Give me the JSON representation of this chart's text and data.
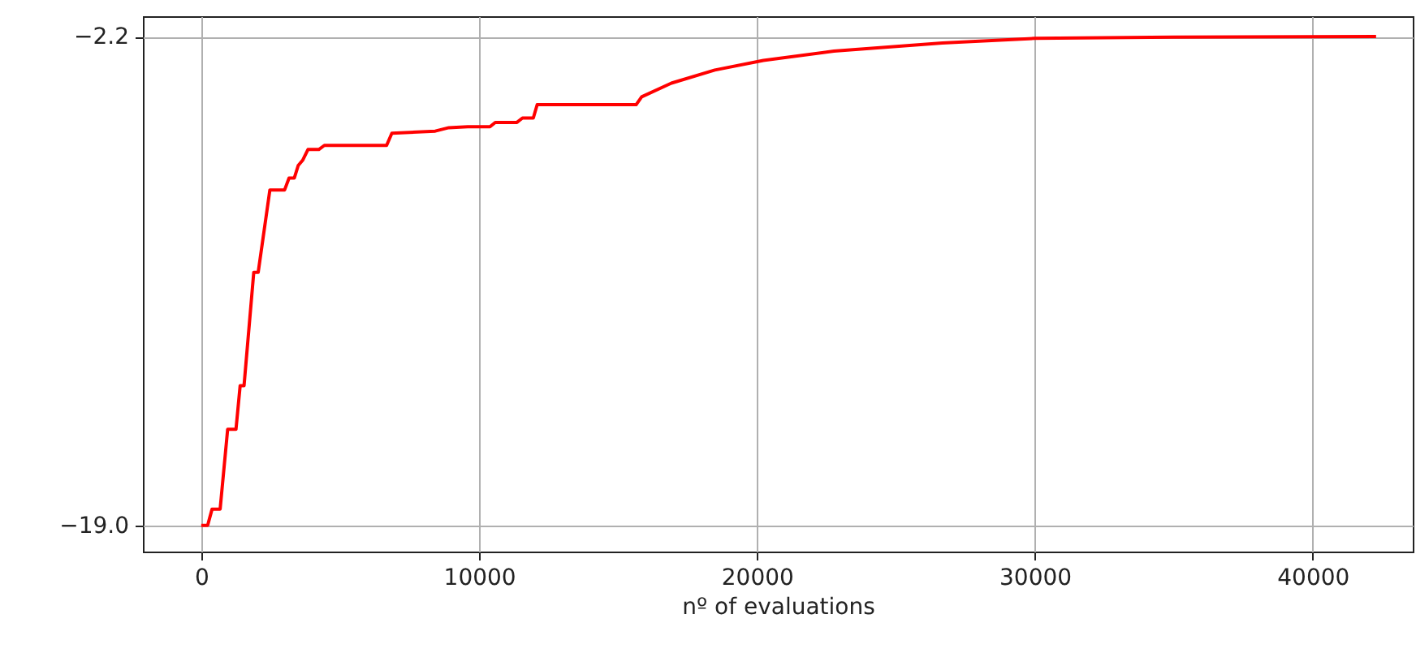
{
  "chart_data": {
    "type": "line",
    "xlabel": "nº of evaluations",
    "x": [
      0,
      230,
      390,
      680,
      950,
      1250,
      1400,
      1540,
      1890,
      2050,
      2470,
      3000,
      3160,
      3350,
      3490,
      3650,
      3840,
      4230,
      4430,
      6670,
      6860,
      8420,
      8910,
      9590,
      10390,
      10580,
      11360,
      11560,
      11950,
      12090,
      15650,
      15850,
      16920,
      18480,
      20230,
      22770,
      26670,
      30000,
      35000,
      42280
    ],
    "series": [
      {
        "color": "#ff0000",
        "values": [
          -19.0,
          -19.0,
          -18.44,
          -18.44,
          -15.7,
          -15.7,
          -14.2,
          -14.2,
          -10.3,
          -10.3,
          -7.47,
          -7.47,
          -7.06,
          -7.06,
          -6.63,
          -6.45,
          -6.08,
          -6.08,
          -5.94,
          -5.94,
          -5.52,
          -5.45,
          -5.33,
          -5.3,
          -5.3,
          -5.15,
          -5.15,
          -5.0,
          -5.0,
          -4.54,
          -4.54,
          -4.27,
          -3.8,
          -3.35,
          -3.02,
          -2.7,
          -2.42,
          -2.26,
          -2.22,
          -2.2
        ]
      }
    ],
    "xlim": [
      -2100,
      43600
    ],
    "ylim": [
      -19.9,
      -1.5
    ],
    "xticks": [
      0,
      10000,
      20000,
      30000,
      40000
    ],
    "yticks": [
      {
        "value": -19.0,
        "label": "−19.0"
      },
      {
        "value": -2.2,
        "label": "−2.2"
      }
    ],
    "grid": true,
    "line_style": "solid",
    "marker": "none"
  }
}
